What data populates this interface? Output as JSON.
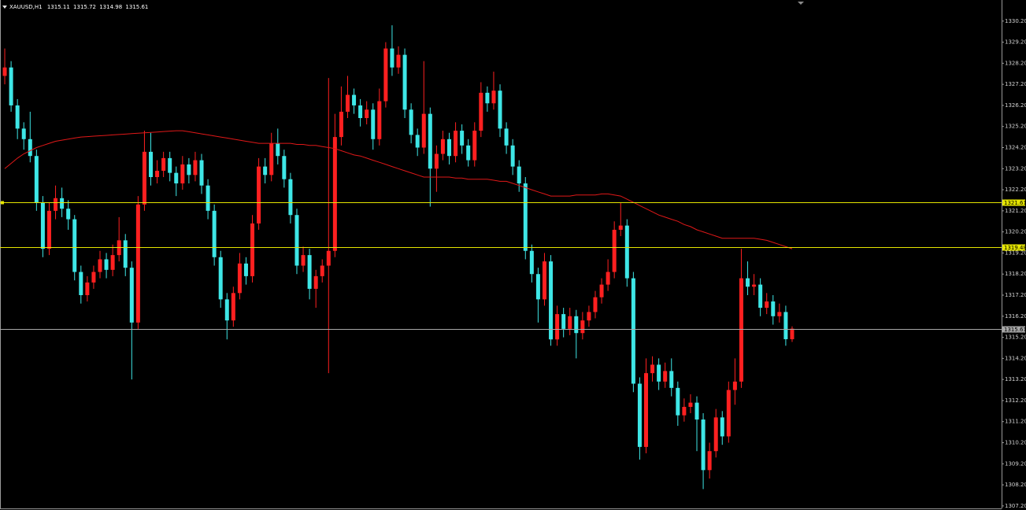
{
  "chart_data": {
    "type": "candlestick",
    "title": "XAUUSD,H1",
    "up_color": "#ff2020",
    "down_color": "#3ee6e6",
    "background": "#000000",
    "open": [
      1327.6,
      1328.0,
      1326.2,
      1325.1,
      1324.6,
      1323.8,
      1321.6,
      1319.4,
      1321.2,
      1321.8,
      1321.3,
      1320.8,
      1318.3,
      1317.2,
      1317.8,
      1318.3,
      1318.9,
      1318.4,
      1319.1,
      1319.8,
      1318.5,
      1315.9,
      1321.5,
      1324.0,
      1322.8,
      1323.1,
      1323.7,
      1323.0,
      1322.5,
      1323.4,
      1322.9,
      1323.6,
      1322.4,
      1321.2,
      1319.0,
      1317.0,
      1316.0,
      1317.3,
      1318.7,
      1318.1,
      1320.6,
      1323.3,
      1322.9,
      1324.4,
      1323.8,
      1322.7,
      1321.0,
      1318.6,
      1319.1,
      1317.5,
      1318.1,
      1318.6,
      1319.3,
      1324.7,
      1325.9,
      1326.7,
      1326.2,
      1325.6,
      1326.0,
      1324.6,
      1326.4,
      1328.9,
      1328.0,
      1328.6,
      1326.0,
      1324.8,
      1324.2,
      1325.8,
      1323.2,
      1323.9,
      1324.6,
      1323.8,
      1325.0,
      1324.3,
      1323.6,
      1325.0,
      1326.8,
      1326.3,
      1326.9,
      1325.1,
      1324.3,
      1323.3,
      1322.5,
      1319.3,
      1318.2,
      1317.0,
      1318.8,
      1315.1,
      1316.3,
      1315.6,
      1316.2,
      1315.4,
      1316.0,
      1316.4,
      1317.1,
      1317.7,
      1318.3,
      1320.3,
      1320.5,
      1318.0,
      1313.0,
      1310.0,
      1313.5,
      1313.9,
      1313.1,
      1313.6,
      1312.8,
      1311.5,
      1311.9,
      1312.1,
      1311.3,
      1308.9,
      1309.8,
      1311.4,
      1310.5,
      1312.7,
      1313.1,
      1318.0,
      1317.6,
      1317.7,
      1316.6,
      1316.9,
      1316.2,
      1316.4,
      1315.11
    ],
    "high": [
      1328.9,
      1328.3,
      1326.5,
      1325.4,
      1325.9,
      1324.1,
      1321.9,
      1321.6,
      1322.4,
      1322.3,
      1321.7,
      1321.0,
      1318.6,
      1318.1,
      1318.6,
      1319.3,
      1319.2,
      1319.6,
      1320.9,
      1320.1,
      1318.8,
      1321.9,
      1325.0,
      1324.9,
      1323.6,
      1324.0,
      1324.0,
      1323.3,
      1323.8,
      1323.7,
      1324.0,
      1323.9,
      1322.7,
      1321.5,
      1319.3,
      1317.3,
      1317.6,
      1319.2,
      1319.0,
      1321.0,
      1323.7,
      1323.7,
      1324.9,
      1325.1,
      1324.1,
      1323.0,
      1321.3,
      1319.5,
      1319.4,
      1318.4,
      1318.9,
      1327.5,
      1325.8,
      1327.1,
      1327.6,
      1327.0,
      1326.5,
      1326.4,
      1326.3,
      1327.0,
      1329.2,
      1330.0,
      1329.0,
      1328.9,
      1326.3,
      1325.1,
      1328.3,
      1326.1,
      1324.3,
      1325.0,
      1324.9,
      1325.4,
      1325.3,
      1324.6,
      1325.4,
      1327.3,
      1327.1,
      1327.8,
      1327.2,
      1325.4,
      1324.6,
      1323.6,
      1322.8,
      1319.6,
      1318.5,
      1319.2,
      1319.1,
      1316.7,
      1316.6,
      1316.6,
      1316.5,
      1316.4,
      1316.7,
      1317.4,
      1318.0,
      1318.9,
      1320.7,
      1321.6,
      1320.8,
      1318.3,
      1313.3,
      1314.2,
      1314.3,
      1314.2,
      1314.0,
      1314.2,
      1313.1,
      1312.3,
      1312.5,
      1312.4,
      1311.6,
      1310.2,
      1311.8,
      1311.7,
      1313.1,
      1314.2,
      1319.4,
      1318.8,
      1318.2,
      1318.0,
      1317.3,
      1317.2,
      1316.8,
      1316.7,
      1315.72
    ],
    "low": [
      1327.2,
      1325.9,
      1324.6,
      1324.1,
      1323.5,
      1321.2,
      1319.0,
      1319.1,
      1320.8,
      1320.9,
      1320.3,
      1317.9,
      1316.8,
      1316.9,
      1317.5,
      1318.0,
      1318.0,
      1318.1,
      1318.8,
      1318.1,
      1313.2,
      1315.6,
      1321.2,
      1322.4,
      1322.5,
      1322.8,
      1322.6,
      1321.9,
      1322.2,
      1322.5,
      1322.6,
      1322.0,
      1320.8,
      1318.6,
      1316.6,
      1315.1,
      1315.7,
      1317.0,
      1317.7,
      1317.8,
      1320.3,
      1322.5,
      1322.6,
      1323.4,
      1322.3,
      1320.6,
      1318.2,
      1318.3,
      1317.0,
      1316.6,
      1317.8,
      1313.5,
      1319.0,
      1324.3,
      1325.6,
      1325.8,
      1325.2,
      1325.3,
      1324.1,
      1324.3,
      1326.1,
      1327.6,
      1327.7,
      1325.6,
      1324.4,
      1323.8,
      1323.9,
      1321.4,
      1322.1,
      1323.6,
      1323.4,
      1323.5,
      1323.9,
      1323.3,
      1323.3,
      1324.7,
      1325.9,
      1326.0,
      1324.7,
      1323.9,
      1322.9,
      1322.1,
      1318.9,
      1317.8,
      1315.9,
      1316.7,
      1314.8,
      1314.8,
      1315.2,
      1315.3,
      1314.2,
      1315.1,
      1315.7,
      1316.1,
      1316.8,
      1317.4,
      1318.0,
      1320.0,
      1317.6,
      1312.6,
      1309.4,
      1309.7,
      1313.1,
      1312.7,
      1312.8,
      1312.4,
      1311.0,
      1311.2,
      1311.6,
      1309.8,
      1308.0,
      1308.5,
      1309.5,
      1310.1,
      1310.2,
      1312.0,
      1312.8,
      1317.2,
      1317.2,
      1316.2,
      1316.3,
      1315.8,
      1315.9,
      1314.8,
      1314.98
    ],
    "close": [
      1328.0,
      1326.2,
      1325.1,
      1324.6,
      1323.8,
      1321.6,
      1319.4,
      1321.2,
      1321.8,
      1321.3,
      1320.8,
      1318.3,
      1317.2,
      1317.8,
      1318.3,
      1318.9,
      1318.4,
      1319.1,
      1319.8,
      1318.5,
      1315.9,
      1321.5,
      1324.0,
      1322.8,
      1323.1,
      1323.7,
      1323.0,
      1322.5,
      1323.4,
      1322.9,
      1323.6,
      1322.4,
      1321.2,
      1319.0,
      1317.0,
      1316.0,
      1317.3,
      1318.7,
      1318.1,
      1320.6,
      1323.3,
      1322.9,
      1324.4,
      1323.8,
      1322.7,
      1321.0,
      1318.6,
      1319.1,
      1317.5,
      1318.1,
      1318.6,
      1319.3,
      1324.7,
      1325.9,
      1326.7,
      1326.2,
      1325.6,
      1326.0,
      1324.6,
      1326.4,
      1328.9,
      1328.0,
      1328.6,
      1326.0,
      1324.8,
      1324.2,
      1325.8,
      1323.2,
      1323.9,
      1324.6,
      1323.8,
      1325.0,
      1324.3,
      1323.6,
      1325.0,
      1326.8,
      1326.3,
      1326.9,
      1325.1,
      1324.3,
      1323.3,
      1322.5,
      1319.3,
      1318.2,
      1317.0,
      1318.8,
      1315.1,
      1316.3,
      1315.6,
      1316.2,
      1315.4,
      1316.0,
      1316.4,
      1317.1,
      1317.7,
      1318.3,
      1320.3,
      1320.5,
      1318.0,
      1313.0,
      1310.0,
      1313.5,
      1313.9,
      1313.1,
      1313.6,
      1312.8,
      1311.5,
      1311.9,
      1312.1,
      1311.3,
      1308.9,
      1309.8,
      1311.4,
      1310.5,
      1312.7,
      1313.1,
      1318.0,
      1317.6,
      1317.7,
      1316.6,
      1316.9,
      1316.2,
      1316.4,
      1315.11,
      1315.61
    ],
    "ma": {
      "color": "#e01818",
      "values": [
        1323.2,
        1323.45,
        1323.7,
        1323.9,
        1324.05,
        1324.2,
        1324.3,
        1324.4,
        1324.5,
        1324.55,
        1324.6,
        1324.65,
        1324.7,
        1324.72,
        1324.74,
        1324.76,
        1324.78,
        1324.8,
        1324.82,
        1324.84,
        1324.86,
        1324.88,
        1324.9,
        1324.92,
        1324.94,
        1324.96,
        1324.98,
        1325.0,
        1325.0,
        1324.95,
        1324.9,
        1324.85,
        1324.8,
        1324.75,
        1324.7,
        1324.65,
        1324.6,
        1324.55,
        1324.5,
        1324.45,
        1324.4,
        1324.4,
        1324.4,
        1324.4,
        1324.4,
        1324.4,
        1324.35,
        1324.35,
        1324.3,
        1324.3,
        1324.25,
        1324.2,
        1324.15,
        1324.05,
        1323.95,
        1323.85,
        1323.8,
        1323.7,
        1323.6,
        1323.5,
        1323.4,
        1323.3,
        1323.2,
        1323.1,
        1323.0,
        1322.9,
        1322.8,
        1322.8,
        1322.8,
        1322.8,
        1322.8,
        1322.75,
        1322.75,
        1322.7,
        1322.7,
        1322.7,
        1322.7,
        1322.65,
        1322.6,
        1322.6,
        1322.5,
        1322.4,
        1322.3,
        1322.2,
        1322.1,
        1322.0,
        1321.9,
        1321.9,
        1321.9,
        1321.9,
        1321.95,
        1321.95,
        1321.95,
        1321.95,
        1322.0,
        1322.0,
        1321.95,
        1321.9,
        1321.75,
        1321.6,
        1321.45,
        1321.3,
        1321.15,
        1321.0,
        1320.9,
        1320.8,
        1320.7,
        1320.55,
        1320.45,
        1320.3,
        1320.2,
        1320.1,
        1320.0,
        1319.9,
        1319.9,
        1319.9,
        1319.9,
        1319.9,
        1319.9,
        1319.85,
        1319.8,
        1319.7,
        1319.6,
        1319.5,
        1319.4
      ]
    },
    "levels": [
      {
        "value": 1321.61,
        "color": "#e6e600"
      },
      {
        "value": 1319.48,
        "color": "#e6e600"
      },
      {
        "value": 1315.61,
        "color": "#a8a8a8"
      }
    ],
    "ylim": [
      1307.12,
      1331.2
    ],
    "yticks": [
      {
        "value": 1307.2,
        "label": "1307.20"
      },
      {
        "value": 1308.2,
        "label": "1308.20"
      },
      {
        "value": 1309.2,
        "label": "1309.20"
      },
      {
        "value": 1310.2,
        "label": "1310.20"
      },
      {
        "value": 1311.2,
        "label": "1311.20"
      },
      {
        "value": 1312.2,
        "label": "1312.20"
      },
      {
        "value": 1313.2,
        "label": "1313.20"
      },
      {
        "value": 1314.2,
        "label": "1314.20"
      },
      {
        "value": 1315.2,
        "label": "1315.20"
      },
      {
        "value": 1316.2,
        "label": "1316.20"
      },
      {
        "value": 1317.2,
        "label": "1317.20"
      },
      {
        "value": 1318.2,
        "label": "1318.20"
      },
      {
        "value": 1319.2,
        "label": "1319.20"
      },
      {
        "value": 1320.2,
        "label": "1320.20"
      },
      {
        "value": 1321.2,
        "label": "1321.20"
      },
      {
        "value": 1322.2,
        "label": "1322.20"
      },
      {
        "value": 1323.2,
        "label": "1323.20"
      },
      {
        "value": 1324.2,
        "label": "1324.20"
      },
      {
        "value": 1325.2,
        "label": "1325.20"
      },
      {
        "value": 1326.2,
        "label": "1326.20"
      },
      {
        "value": 1327.2,
        "label": "1327.20"
      },
      {
        "value": 1328.2,
        "label": "1328.20"
      },
      {
        "value": 1329.2,
        "label": "1329.20"
      },
      {
        "value": 1330.2,
        "label": "1330.20"
      }
    ],
    "grid": false
  }
}
